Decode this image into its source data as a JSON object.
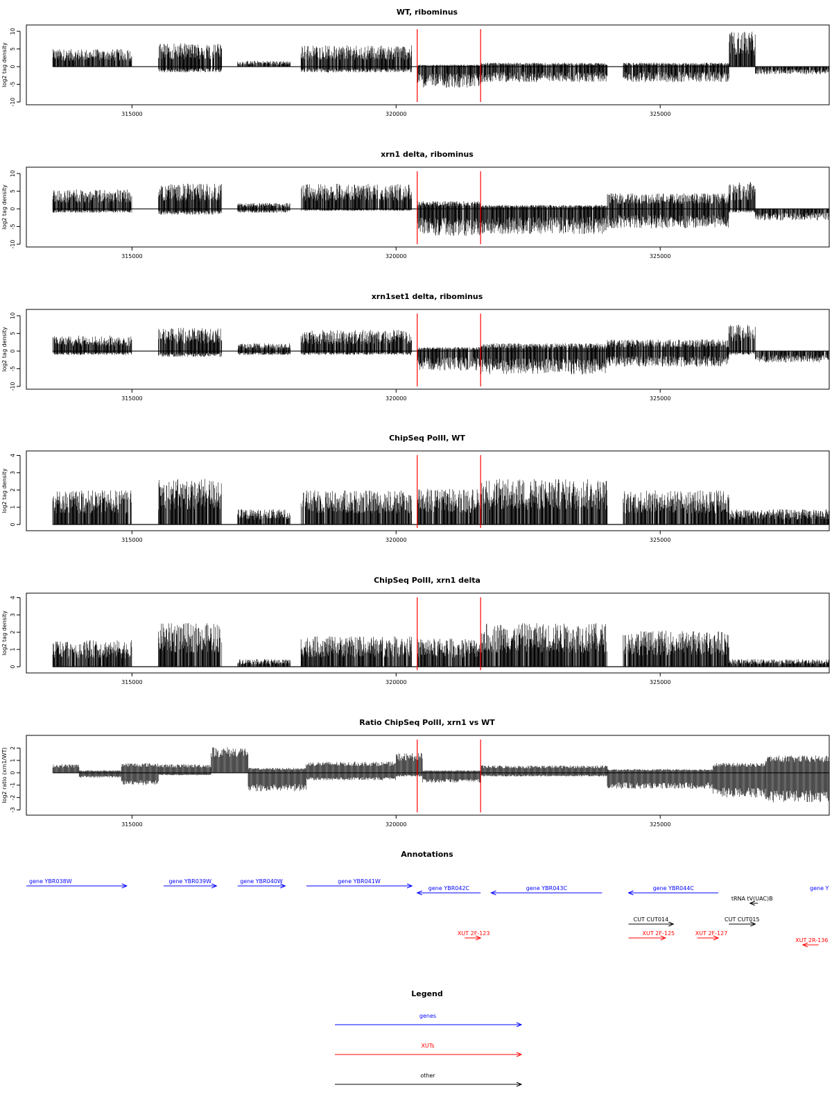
{
  "colors": {
    "gene": "#0000ff",
    "xut": "#ff0000",
    "other": "#000000",
    "marker": "#ff0000",
    "bar": "#000000"
  },
  "chart_data": [
    {
      "type": "bar",
      "title": "WT, ribominus",
      "ylabel": "log2 tag density",
      "xlim": [
        313000,
        328200
      ],
      "ylim": [
        -10,
        11
      ],
      "xticks": [
        315000,
        320000,
        325000
      ],
      "yticks": [
        -10,
        -5,
        0,
        5,
        10
      ],
      "markers": [
        320400,
        321600
      ],
      "segments": [
        {
          "x": [
            313500,
            315000
          ],
          "pos": 4.5,
          "neg": 0
        },
        {
          "x": [
            315500,
            316700
          ],
          "pos": 6,
          "neg": -1.5
        },
        {
          "x": [
            317000,
            318000
          ],
          "pos": 1.5,
          "neg": 0
        },
        {
          "x": [
            318200,
            320300
          ],
          "pos": 5.5,
          "neg": -1.5
        },
        {
          "x": [
            320400,
            321600
          ],
          "pos": 0.5,
          "neg": -5.5
        },
        {
          "x": [
            321600,
            324000
          ],
          "pos": 1,
          "neg": -4
        },
        {
          "x": [
            324300,
            326300
          ],
          "pos": 1,
          "neg": -4
        },
        {
          "x": [
            326300,
            326800
          ],
          "pos": 9,
          "neg": 0
        },
        {
          "x": [
            326800,
            328200
          ],
          "pos": 0,
          "neg": -2
        }
      ]
    },
    {
      "type": "bar",
      "title": "xrn1 delta, ribominus",
      "ylabel": "log2 tag density",
      "xlim": [
        313000,
        328200
      ],
      "ylim": [
        -10,
        11
      ],
      "xticks": [
        315000,
        320000,
        325000
      ],
      "yticks": [
        -10,
        -5,
        0,
        5,
        10
      ],
      "markers": [
        320400,
        321600
      ],
      "segments": [
        {
          "x": [
            313500,
            315000
          ],
          "pos": 5,
          "neg": -1
        },
        {
          "x": [
            315500,
            316700
          ],
          "pos": 6.5,
          "neg": -1.5
        },
        {
          "x": [
            317000,
            318000
          ],
          "pos": 1.5,
          "neg": -1
        },
        {
          "x": [
            318200,
            320300
          ],
          "pos": 6.5,
          "neg": -0.5
        },
        {
          "x": [
            320400,
            321600
          ],
          "pos": 2,
          "neg": -7
        },
        {
          "x": [
            321600,
            324000
          ],
          "pos": 1,
          "neg": -6.5
        },
        {
          "x": [
            324000,
            326300
          ],
          "pos": 4,
          "neg": -5
        },
        {
          "x": [
            326300,
            326800
          ],
          "pos": 7,
          "neg": -1
        },
        {
          "x": [
            326800,
            328200
          ],
          "pos": 0,
          "neg": -3
        }
      ]
    },
    {
      "type": "bar",
      "title": "xrn1set1 delta, ribominus",
      "ylabel": "log2 tag density",
      "xlim": [
        313000,
        328200
      ],
      "ylim": [
        -10,
        11
      ],
      "xticks": [
        315000,
        320000,
        325000
      ],
      "yticks": [
        -10,
        -5,
        0,
        5,
        10
      ],
      "markers": [
        320400,
        321600
      ],
      "segments": [
        {
          "x": [
            313500,
            315000
          ],
          "pos": 4,
          "neg": -1
        },
        {
          "x": [
            315500,
            316700
          ],
          "pos": 6,
          "neg": -1.5
        },
        {
          "x": [
            317000,
            318000
          ],
          "pos": 2,
          "neg": -1
        },
        {
          "x": [
            318200,
            320300
          ],
          "pos": 5.5,
          "neg": -1
        },
        {
          "x": [
            320400,
            321600
          ],
          "pos": 1,
          "neg": -5
        },
        {
          "x": [
            321600,
            324000
          ],
          "pos": 2,
          "neg": -6
        },
        {
          "x": [
            324000,
            326300
          ],
          "pos": 3,
          "neg": -4
        },
        {
          "x": [
            326300,
            326800
          ],
          "pos": 7,
          "neg": -1
        },
        {
          "x": [
            326800,
            328200
          ],
          "pos": 0,
          "neg": -3
        }
      ]
    },
    {
      "type": "bar",
      "title": "ChipSeq PolII, WT",
      "ylabel": "log2 tag density",
      "xlim": [
        313000,
        328200
      ],
      "ylim": [
        -0.2,
        4.1
      ],
      "xticks": [
        315000,
        320000,
        325000
      ],
      "yticks": [
        0,
        1,
        2,
        3,
        4
      ],
      "markers": [
        320400,
        321600
      ],
      "segments": [
        {
          "x": [
            313500,
            315000
          ],
          "pos": 1.8,
          "neg": 0
        },
        {
          "x": [
            315500,
            316700
          ],
          "pos": 2.4,
          "neg": 0
        },
        {
          "x": [
            317000,
            318000
          ],
          "pos": 0.8,
          "neg": 0
        },
        {
          "x": [
            318200,
            320300
          ],
          "pos": 1.8,
          "neg": 0
        },
        {
          "x": [
            320400,
            321600
          ],
          "pos": 1.9,
          "neg": 0
        },
        {
          "x": [
            321600,
            324000
          ],
          "pos": 2.4,
          "neg": 0
        },
        {
          "x": [
            324300,
            326300
          ],
          "pos": 1.8,
          "neg": 0
        },
        {
          "x": [
            326300,
            328200
          ],
          "pos": 0.8,
          "neg": 0
        }
      ]
    },
    {
      "type": "bar",
      "title": "ChipSeq PolII, xrn1 delta",
      "ylabel": "log2 tag density",
      "xlim": [
        313000,
        328200
      ],
      "ylim": [
        -0.2,
        4.1
      ],
      "xticks": [
        315000,
        320000,
        325000
      ],
      "yticks": [
        0,
        1,
        2,
        3,
        4
      ],
      "markers": [
        320400,
        321600
      ],
      "segments": [
        {
          "x": [
            313500,
            315000
          ],
          "pos": 1.4,
          "neg": 0
        },
        {
          "x": [
            315500,
            316700
          ],
          "pos": 2.3,
          "neg": 0
        },
        {
          "x": [
            317000,
            318000
          ],
          "pos": 0.4,
          "neg": 0
        },
        {
          "x": [
            318200,
            320300
          ],
          "pos": 1.6,
          "neg": 0
        },
        {
          "x": [
            320400,
            321600
          ],
          "pos": 1.5,
          "neg": 0
        },
        {
          "x": [
            321600,
            324000
          ],
          "pos": 2.3,
          "neg": 0
        },
        {
          "x": [
            324300,
            326300
          ],
          "pos": 1.9,
          "neg": 0
        },
        {
          "x": [
            326300,
            328200
          ],
          "pos": 0.4,
          "neg": 0
        }
      ]
    },
    {
      "type": "area",
      "title": "Ratio ChipSeq PolII, xrn1 vs WT",
      "ylabel": "log2 ratio (xrn1/WT)",
      "xlim": [
        313000,
        328200
      ],
      "ylim": [
        -3.2,
        2.8
      ],
      "xticks": [
        315000,
        320000,
        325000
      ],
      "yticks": [
        -3,
        -2,
        -1,
        0,
        1,
        2
      ],
      "markers": [
        320400,
        321600
      ],
      "segments": [
        {
          "x": [
            313500,
            314000
          ],
          "pos": 0.7,
          "neg": 0
        },
        {
          "x": [
            314000,
            314800
          ],
          "pos": 0.2,
          "neg": -0.4
        },
        {
          "x": [
            314800,
            315500
          ],
          "pos": 0.8,
          "neg": -1.0
        },
        {
          "x": [
            315500,
            316500
          ],
          "pos": 0.7,
          "neg": -0.2
        },
        {
          "x": [
            316500,
            317200
          ],
          "pos": 2.1,
          "neg": 0
        },
        {
          "x": [
            317200,
            318300
          ],
          "pos": 0.4,
          "neg": -1.5
        },
        {
          "x": [
            318300,
            320000
          ],
          "pos": 0.9,
          "neg": -0.6
        },
        {
          "x": [
            320000,
            320500
          ],
          "pos": 1.6,
          "neg": -0.3
        },
        {
          "x": [
            320500,
            321600
          ],
          "pos": 0.2,
          "neg": -0.8
        },
        {
          "x": [
            321600,
            324000
          ],
          "pos": 0.6,
          "neg": -0.3
        },
        {
          "x": [
            324000,
            326000
          ],
          "pos": 0.3,
          "neg": -1.3
        },
        {
          "x": [
            326000,
            327000
          ],
          "pos": 0.8,
          "neg": -2.0
        },
        {
          "x": [
            327000,
            328200
          ],
          "pos": 1.4,
          "neg": -2.4
        }
      ]
    }
  ],
  "annotations_panel": {
    "title": "Annotations",
    "features": [
      {
        "label": "gene YBR038W",
        "type": "gene",
        "strand": "+",
        "start": 313000,
        "end": 314900,
        "row": 0
      },
      {
        "label": "gene YBR039W",
        "type": "gene",
        "strand": "+",
        "start": 315600,
        "end": 316600,
        "row": 0
      },
      {
        "label": "gene YBR040W",
        "type": "gene",
        "strand": "+",
        "start": 317000,
        "end": 317900,
        "row": 0
      },
      {
        "label": "gene YBR041W",
        "type": "gene",
        "strand": "+",
        "start": 318300,
        "end": 320300,
        "row": 0
      },
      {
        "label": "gene YBR042C",
        "type": "gene",
        "strand": "-",
        "start": 320400,
        "end": 321600,
        "row": 1
      },
      {
        "label": "gene YBR043C",
        "type": "gene",
        "strand": "-",
        "start": 321800,
        "end": 323900,
        "row": 1
      },
      {
        "label": "gene YBR044C",
        "type": "gene",
        "strand": "-",
        "start": 324400,
        "end": 326100,
        "row": 1
      },
      {
        "label": "gene Y",
        "type": "gene",
        "strand": "-",
        "start": 328300,
        "end": 329000,
        "row": 1
      },
      {
        "label": "tRNA tV(UAC)B",
        "type": "other",
        "strand": "-",
        "start": 326700,
        "end": 326850,
        "row": 2
      },
      {
        "label": "CUT CUT014",
        "type": "other",
        "strand": "+",
        "start": 324400,
        "end": 325250,
        "row": 3
      },
      {
        "label": "CUT CUT015",
        "type": "other",
        "strand": "+",
        "start": 326300,
        "end": 326800,
        "row": 3
      },
      {
        "label": "XUT 2F-123",
        "type": "xut",
        "strand": "+",
        "start": 321300,
        "end": 321600,
        "row": 4
      },
      {
        "label": "XUT 2F-125",
        "type": "xut",
        "strand": "+",
        "start": 324400,
        "end": 325100,
        "row": 4
      },
      {
        "label": "XUT 2F-127",
        "type": "xut",
        "strand": "+",
        "start": 325700,
        "end": 326100,
        "row": 4
      },
      {
        "label": "XUT 2R-136",
        "type": "xut",
        "strand": "-",
        "start": 327700,
        "end": 328000,
        "row": 5
      }
    ]
  },
  "legend": {
    "title": "Legend",
    "entries": [
      {
        "label": "genes",
        "type": "gene"
      },
      {
        "label": "XUTs",
        "type": "xut"
      },
      {
        "label": "other",
        "type": "other"
      }
    ]
  }
}
